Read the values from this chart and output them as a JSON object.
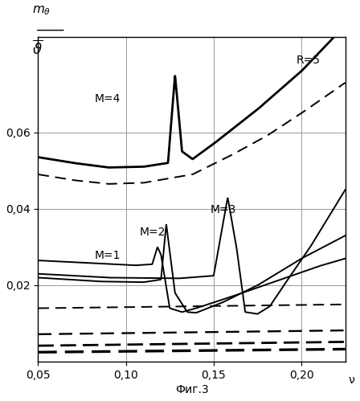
{
  "xlabel": "Фиг.3",
  "xvar": "ν",
  "annotation_R": "R=5",
  "annotation_M4": "M=4",
  "annotation_M3": "M=3",
  "annotation_M2": "M=2",
  "annotation_M1": "M=1",
  "xlim": [
    0.05,
    0.225
  ],
  "ylim": [
    0.0,
    0.085
  ],
  "xticks": [
    0.05,
    0.1,
    0.15,
    0.2
  ],
  "yticks": [
    0.02,
    0.04,
    0.06
  ],
  "grid_color": "#999999",
  "background_color": "white"
}
